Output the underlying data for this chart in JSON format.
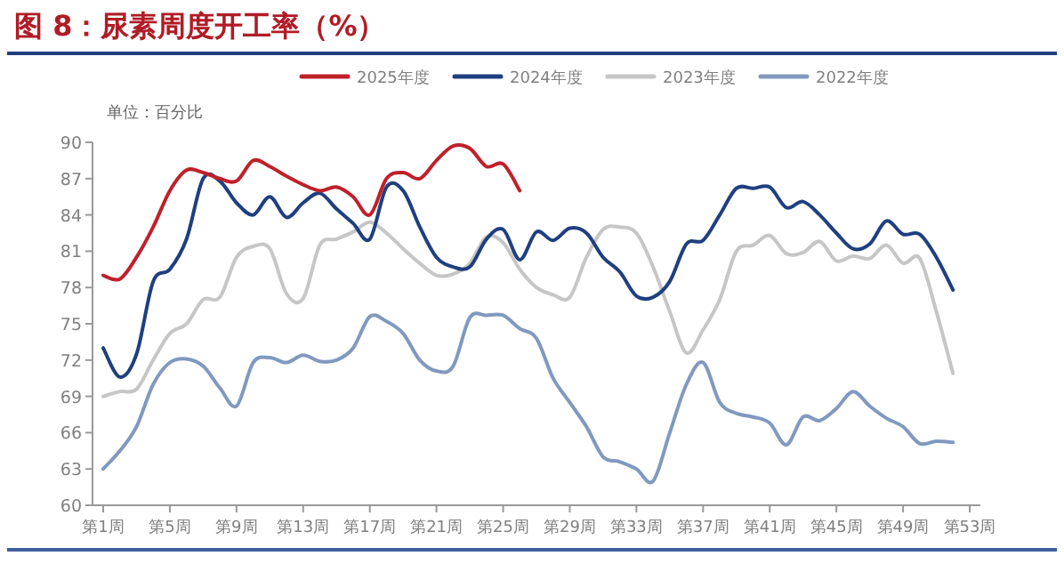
{
  "chart_data": {
    "type": "line",
    "title": "图 8：尿素周度开工率（%）",
    "ylabel": "单位：百分比",
    "categories": [
      "第1周",
      null,
      null,
      null,
      "第5周",
      null,
      null,
      null,
      "第9周",
      null,
      null,
      null,
      "第13周",
      null,
      null,
      null,
      "第17周",
      null,
      null,
      null,
      "第21周",
      null,
      null,
      null,
      "第25周",
      null,
      null,
      null,
      "第29周",
      null,
      null,
      null,
      "第33周",
      null,
      null,
      null,
      "第37周",
      null,
      null,
      null,
      "第41周",
      null,
      null,
      null,
      "第45周",
      null,
      null,
      null,
      "第49周",
      null,
      null,
      null,
      "第53周"
    ],
    "ylim": [
      60,
      90
    ],
    "yticks": [
      60,
      63,
      66,
      69,
      72,
      75,
      78,
      81,
      84,
      87,
      90
    ],
    "legend": "top",
    "grid": false,
    "marker": "none",
    "series": [
      {
        "name": "2025年度",
        "color": "#c0202a",
        "values": [
          79,
          78.7,
          80.5,
          83,
          86,
          87.7,
          87.5,
          87,
          86.8,
          88.5,
          88,
          87.2,
          86.5,
          86,
          86.3,
          85.5,
          84,
          87,
          87.5,
          87,
          88.5,
          89.7,
          89.5,
          88,
          88.2,
          86,
          null,
          null,
          null,
          null,
          null,
          null,
          null,
          null,
          null,
          null,
          null,
          null,
          null,
          null,
          null,
          null,
          null,
          null,
          null,
          null,
          null,
          null,
          null,
          null,
          null,
          null,
          null
        ]
      },
      {
        "name": "2024年度",
        "color": "#1f3f7f",
        "values": [
          73,
          70.6,
          72.5,
          78.5,
          79.5,
          82,
          87,
          86.8,
          85,
          84,
          85.5,
          83.8,
          85,
          85.8,
          84.5,
          83.3,
          82,
          86.3,
          86,
          83,
          80.5,
          79.7,
          79.7,
          82,
          82.8,
          80.3,
          82.6,
          81.9,
          82.9,
          82.5,
          80.5,
          79.3,
          77.3,
          77.2,
          78.5,
          81.6,
          81.9,
          84,
          86.2,
          86.2,
          86.3,
          84.6,
          85.1,
          84,
          82.5,
          81.2,
          81.6,
          83.5,
          82.4,
          82.4,
          80.5,
          77.8,
          null
        ]
      },
      {
        "name": "2023年度",
        "color": "#c6c6c6",
        "values": [
          69,
          69.4,
          69.6,
          72,
          74.2,
          75,
          77,
          77.2,
          80.5,
          81.4,
          81.2,
          77.5,
          77.1,
          81.5,
          82,
          82.6,
          83.4,
          82.5,
          81.2,
          80,
          79,
          79.1,
          80,
          82.2,
          81.7,
          79.5,
          78,
          77.4,
          77.2,
          80.5,
          82.8,
          83,
          82.5,
          79.7,
          76,
          72.6,
          74.5,
          77,
          81,
          81.5,
          82.3,
          80.8,
          80.9,
          81.8,
          80.2,
          80.6,
          80.4,
          81.5,
          80,
          80.4,
          76,
          70.9,
          null
        ]
      },
      {
        "name": "2022年度",
        "color": "#8199bf",
        "values": [
          63,
          64.5,
          66.5,
          70,
          71.8,
          72.1,
          71.5,
          69.7,
          68.2,
          71.8,
          72.2,
          71.8,
          72.4,
          71.9,
          72,
          73,
          75.6,
          75.2,
          74.2,
          72,
          71.1,
          71.5,
          75.5,
          75.7,
          75.7,
          74.6,
          73.8,
          70.5,
          68.5,
          66.5,
          64,
          63.6,
          63,
          62,
          66,
          70,
          71.8,
          68.5,
          67.6,
          67.3,
          66.8,
          65,
          67.3,
          67,
          68,
          69.4,
          68.2,
          67.2,
          66.5,
          65.1,
          65.3,
          65.2,
          null
        ]
      }
    ]
  }
}
